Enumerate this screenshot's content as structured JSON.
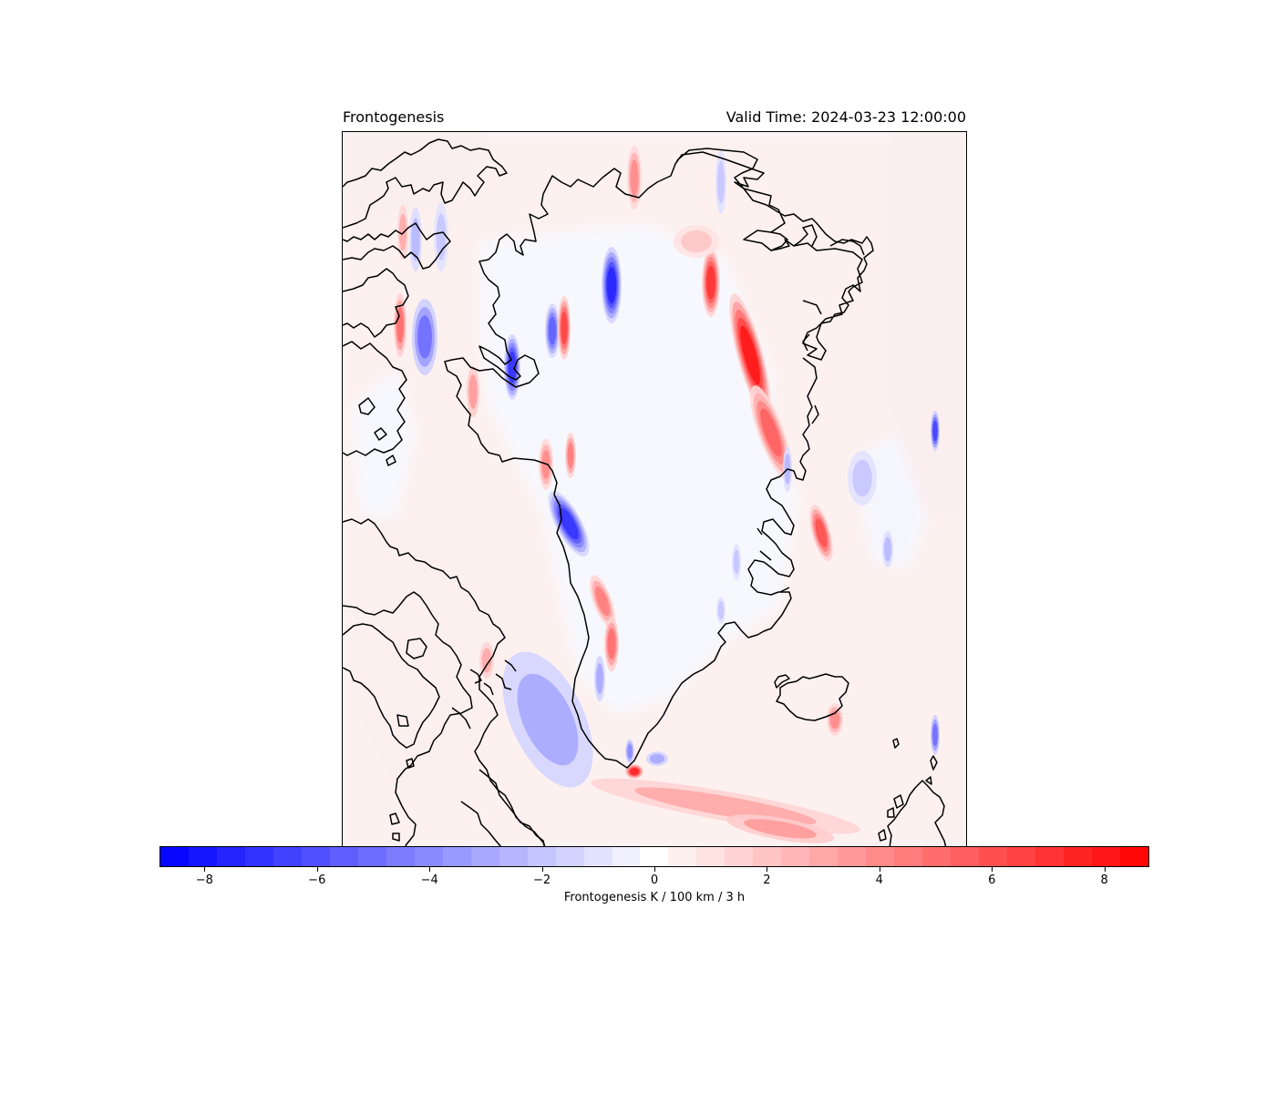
{
  "title_left": "Frontogenesis",
  "title_right": "Valid Time: 2024-03-23 12:00:00",
  "colorbar": {
    "label": "Frontogenesis K / 100 km / 3 h",
    "vmin": -8.8,
    "vmax": 8.8,
    "ticks": [
      {
        "value": -8,
        "label": "−8"
      },
      {
        "value": -6,
        "label": "−6"
      },
      {
        "value": -4,
        "label": "−4"
      },
      {
        "value": -2,
        "label": "−2"
      },
      {
        "value": 0,
        "label": "0"
      },
      {
        "value": 2,
        "label": "2"
      },
      {
        "value": 4,
        "label": "4"
      },
      {
        "value": 6,
        "label": "6"
      },
      {
        "value": 8,
        "label": "8"
      }
    ],
    "levels": 35,
    "colormap": "bwr",
    "negative_color": "#0000ff",
    "neutral_color": "#ffffff",
    "positive_color": "#ff0000"
  },
  "map": {
    "projection": "regional map of Greenland, Baffin Island, Iceland and northern Scotland",
    "background_color": "#f8f8fc"
  }
}
